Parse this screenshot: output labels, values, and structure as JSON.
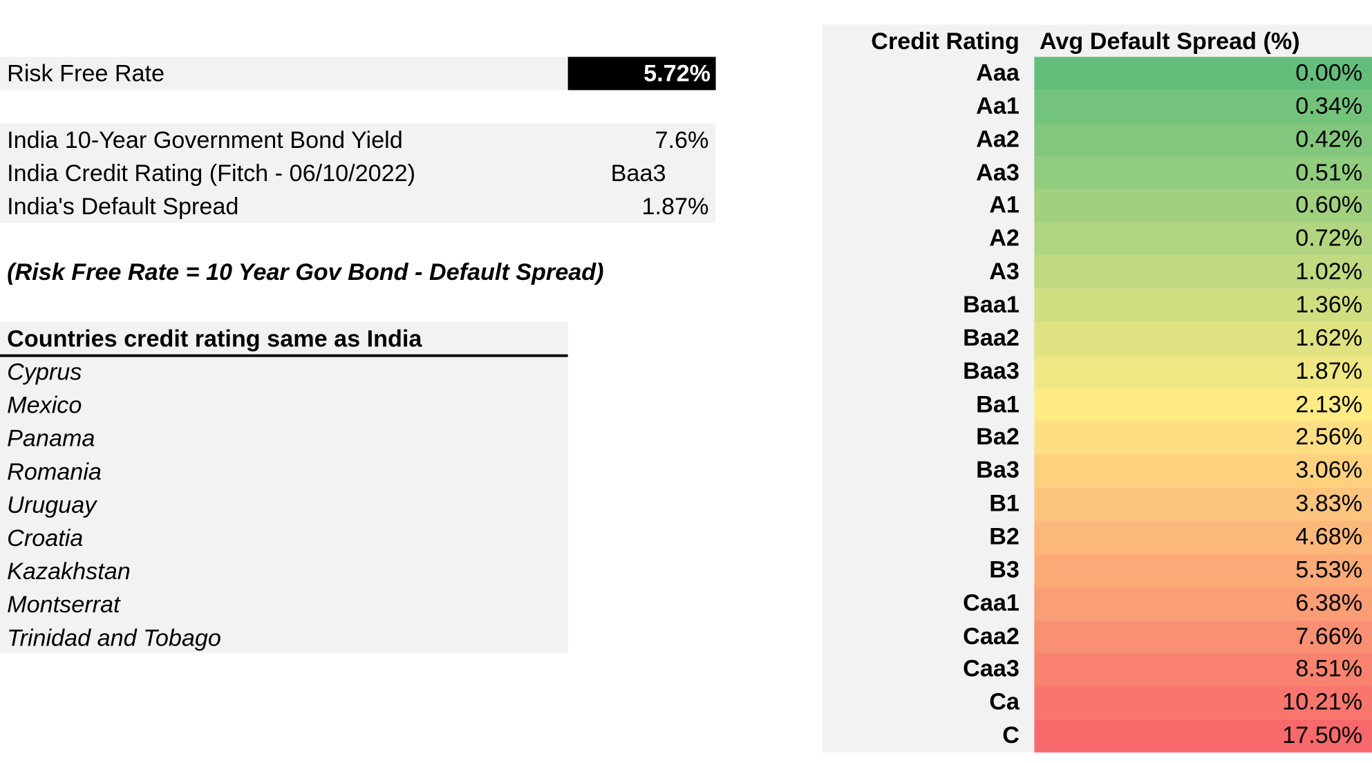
{
  "risk_free": {
    "label": "Risk Free Rate",
    "value": "5.72%"
  },
  "india": {
    "rows": [
      [
        "India 10-Year Government Bond Yield",
        "7.6%"
      ],
      [
        "India Credit Rating (Fitch - 06/10/2022)",
        "Baa3"
      ],
      [
        "India's Default Spread",
        "1.87%"
      ]
    ]
  },
  "formula": "(Risk Free Rate = 10 Year Gov Bond - Default Spread)",
  "countries": {
    "header": "Countries credit rating same as India",
    "rows": [
      "Cyprus",
      "Mexico",
      "Panama",
      "Romania",
      "Uruguay",
      "Croatia",
      "Kazakhstan",
      "Montserrat",
      "Trinidad and Tobago"
    ]
  },
  "spread_table": {
    "headers": [
      "Credit Rating",
      "Avg Default Spread (%)"
    ],
    "rows": [
      [
        "Aaa",
        "0.00%"
      ],
      [
        "Aa1",
        "0.34%"
      ],
      [
        "Aa2",
        "0.42%"
      ],
      [
        "Aa3",
        "0.51%"
      ],
      [
        "A1",
        "0.60%"
      ],
      [
        "A2",
        "0.72%"
      ],
      [
        "A3",
        "1.02%"
      ],
      [
        "Baa1",
        "1.36%"
      ],
      [
        "Baa2",
        "1.62%"
      ],
      [
        "Baa3",
        "1.87%"
      ],
      [
        "Ba1",
        "2.13%"
      ],
      [
        "Ba2",
        "2.56%"
      ],
      [
        "Ba3",
        "3.06%"
      ],
      [
        "B1",
        "3.83%"
      ],
      [
        "B2",
        "4.68%"
      ],
      [
        "B3",
        "5.53%"
      ],
      [
        "Caa1",
        "6.38%"
      ],
      [
        "Caa2",
        "7.66%"
      ],
      [
        "Caa3",
        "8.51%"
      ],
      [
        "Ca",
        "10.21%"
      ],
      [
        "C",
        "17.50%"
      ]
    ]
  }
}
